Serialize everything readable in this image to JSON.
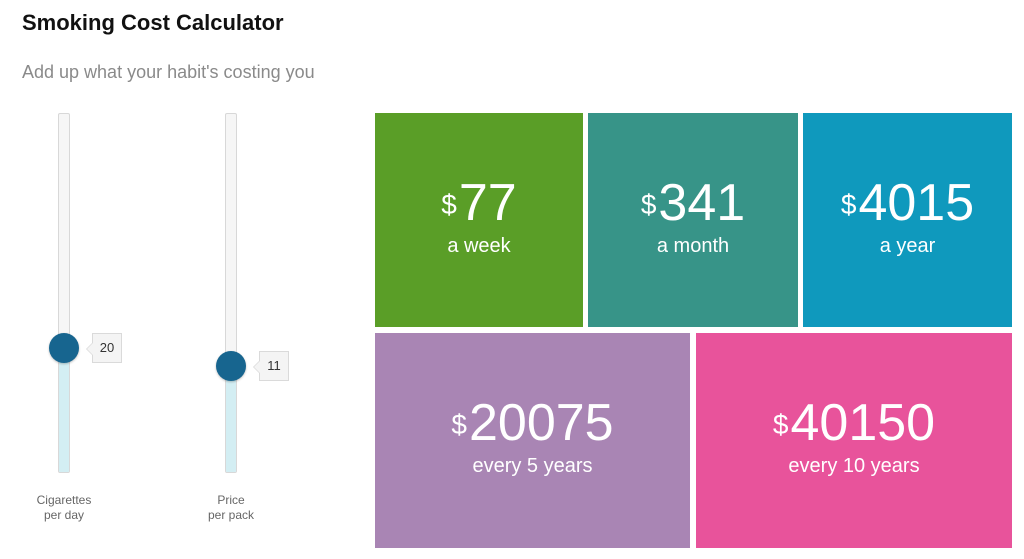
{
  "header": {
    "title": "Smoking Cost Calculator",
    "subtitle": "Add up what your habit's costing you"
  },
  "sliders": [
    {
      "label_line1": "Cigarettes",
      "label_line2": "per day",
      "value": "20",
      "level_fraction": 0.31
    },
    {
      "label_line1": "Price",
      "label_line2": "per pack",
      "value": "11",
      "level_fraction": 0.26
    }
  ],
  "results": {
    "currency": "$",
    "week": {
      "amount": "77",
      "label": "a week",
      "color": "#5a9e27"
    },
    "month": {
      "amount": "341",
      "label": "a month",
      "color": "#379488"
    },
    "year": {
      "amount": "4015",
      "label": "a year",
      "color": "#0f99bd"
    },
    "years5": {
      "amount": "20075",
      "label": "every 5 years",
      "color": "#a985b4"
    },
    "years10": {
      "amount": "40150",
      "label": "every 10 years",
      "color": "#e8539b"
    }
  },
  "colors": {
    "knob": "#17658f",
    "slider_fill": "#d3eef3"
  }
}
